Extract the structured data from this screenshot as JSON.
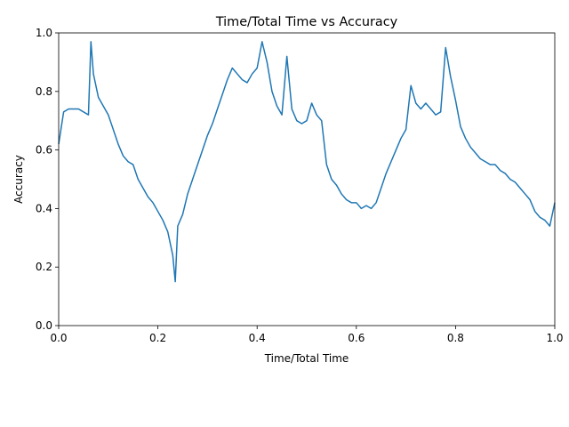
{
  "chart_data": {
    "type": "line",
    "title": "Time/Total Time vs Accuracy",
    "xlabel": "Time/Total Time",
    "ylabel": "Accuracy",
    "xlim": [
      0,
      1
    ],
    "ylim": [
      0,
      1
    ],
    "xticks": [
      "0.0",
      "0.2",
      "0.4",
      "0.6",
      "0.8",
      "1.0"
    ],
    "yticks": [
      "0.0",
      "0.2",
      "0.4",
      "0.6",
      "0.8",
      "1.0"
    ],
    "grid": false,
    "legend": "none",
    "series": [
      {
        "color": "#1f77b4",
        "x": [
          0.0,
          0.01,
          0.02,
          0.03,
          0.04,
          0.05,
          0.06,
          0.065,
          0.07,
          0.08,
          0.09,
          0.1,
          0.11,
          0.12,
          0.13,
          0.14,
          0.15,
          0.16,
          0.17,
          0.18,
          0.19,
          0.2,
          0.21,
          0.22,
          0.23,
          0.235,
          0.24,
          0.25,
          0.26,
          0.27,
          0.28,
          0.29,
          0.3,
          0.31,
          0.32,
          0.33,
          0.34,
          0.35,
          0.36,
          0.37,
          0.38,
          0.39,
          0.4,
          0.41,
          0.42,
          0.43,
          0.44,
          0.45,
          0.46,
          0.47,
          0.48,
          0.49,
          0.5,
          0.51,
          0.52,
          0.53,
          0.54,
          0.55,
          0.56,
          0.57,
          0.58,
          0.59,
          0.6,
          0.61,
          0.62,
          0.63,
          0.64,
          0.65,
          0.66,
          0.67,
          0.68,
          0.69,
          0.7,
          0.71,
          0.72,
          0.73,
          0.74,
          0.75,
          0.76,
          0.77,
          0.78,
          0.79,
          0.8,
          0.81,
          0.82,
          0.83,
          0.84,
          0.85,
          0.86,
          0.87,
          0.88,
          0.89,
          0.9,
          0.91,
          0.92,
          0.93,
          0.94,
          0.95,
          0.96,
          0.97,
          0.98,
          0.99,
          1.0
        ],
        "y": [
          0.62,
          0.73,
          0.74,
          0.74,
          0.74,
          0.73,
          0.72,
          0.97,
          0.86,
          0.78,
          0.75,
          0.72,
          0.67,
          0.62,
          0.58,
          0.56,
          0.55,
          0.5,
          0.47,
          0.44,
          0.42,
          0.39,
          0.36,
          0.32,
          0.24,
          0.15,
          0.34,
          0.38,
          0.45,
          0.5,
          0.55,
          0.6,
          0.65,
          0.69,
          0.74,
          0.79,
          0.84,
          0.88,
          0.86,
          0.84,
          0.83,
          0.86,
          0.88,
          0.97,
          0.9,
          0.8,
          0.75,
          0.72,
          0.92,
          0.74,
          0.7,
          0.69,
          0.7,
          0.76,
          0.72,
          0.7,
          0.55,
          0.5,
          0.48,
          0.45,
          0.43,
          0.42,
          0.42,
          0.4,
          0.41,
          0.4,
          0.42,
          0.47,
          0.52,
          0.56,
          0.6,
          0.64,
          0.67,
          0.82,
          0.76,
          0.74,
          0.76,
          0.74,
          0.72,
          0.73,
          0.95,
          0.85,
          0.77,
          0.68,
          0.64,
          0.61,
          0.59,
          0.57,
          0.56,
          0.55,
          0.55,
          0.53,
          0.52,
          0.5,
          0.49,
          0.47,
          0.45,
          0.43,
          0.39,
          0.37,
          0.36,
          0.34,
          0.42
        ]
      }
    ]
  }
}
